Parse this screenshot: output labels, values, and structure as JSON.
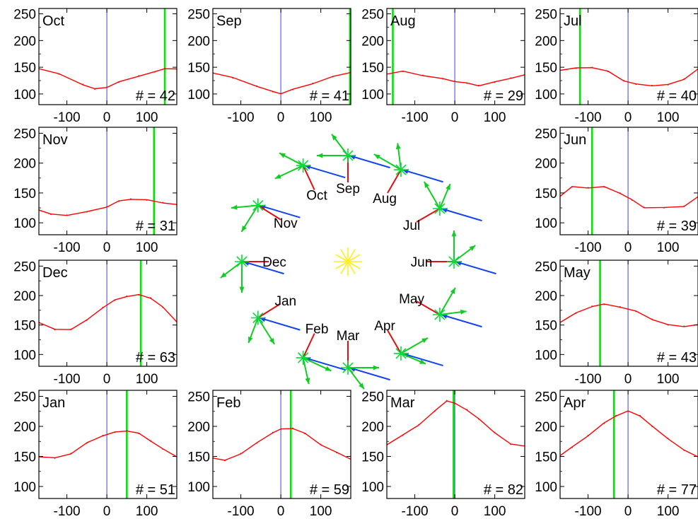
{
  "y_ticks": [
    "250",
    "200",
    "150",
    "100"
  ],
  "x_ticks": [
    "-100",
    "0",
    "100"
  ],
  "count_prefix": "# = ",
  "colors": {
    "curve": "#ff0000",
    "marker_line": "#00e600",
    "zero_line": "#6060e0",
    "frame": "#000000",
    "star_main": "#00dd33",
    "star_diag": "#33dd33",
    "arrow_blue": "#1144ee",
    "arrow_green": "#11cc22",
    "orbit_red": "#dd1111",
    "sun": "#ffee22"
  },
  "chart_data": [
    {
      "type": "line",
      "title": "Oct",
      "count": "42",
      "marker_x": 145,
      "xlim": [
        -170,
        175
      ],
      "ylim": [
        80,
        260
      ],
      "series": [
        {
          "x": [
            -170,
            -120,
            -60,
            -30,
            0,
            30,
            80,
            120,
            145,
            175
          ],
          "y": [
            148,
            137,
            118,
            109,
            113,
            122,
            134,
            141,
            148,
            146
          ]
        }
      ]
    },
    {
      "type": "line",
      "title": "Sep",
      "count": "41",
      "marker_x": 173,
      "xlim": [
        -170,
        175
      ],
      "ylim": [
        80,
        260
      ],
      "series": [
        {
          "x": [
            -170,
            -120,
            -60,
            -20,
            0,
            30,
            80,
            130,
            175
          ],
          "y": [
            140,
            130,
            115,
            104,
            101,
            108,
            120,
            132,
            141
          ]
        }
      ]
    },
    {
      "type": "line",
      "title": "Aug",
      "count": "29",
      "marker_x": -155,
      "xlim": [
        -170,
        175
      ],
      "ylim": [
        80,
        260
      ],
      "series": [
        {
          "x": [
            -170,
            -130,
            -80,
            -30,
            0,
            30,
            60,
            100,
            140,
            175
          ],
          "y": [
            138,
            142,
            135,
            128,
            124,
            120,
            116,
            122,
            130,
            135
          ]
        }
      ]
    },
    {
      "type": "line",
      "title": "Jul",
      "count": "40",
      "marker_x": -120,
      "xlim": [
        -170,
        175
      ],
      "ylim": [
        80,
        260
      ],
      "series": [
        {
          "x": [
            -170,
            -130,
            -90,
            -50,
            -10,
            20,
            60,
            100,
            140,
            175
          ],
          "y": [
            145,
            148,
            150,
            142,
            125,
            118,
            116,
            117,
            128,
            146
          ]
        }
      ]
    },
    {
      "type": "line",
      "title": "Nov",
      "count": "31",
      "marker_x": 118,
      "xlim": [
        -170,
        175
      ],
      "ylim": [
        80,
        260
      ],
      "series": [
        {
          "x": [
            -170,
            -140,
            -100,
            -50,
            0,
            30,
            60,
            100,
            140,
            175
          ],
          "y": [
            122,
            114,
            113,
            118,
            127,
            136,
            140,
            138,
            134,
            130
          ]
        }
      ]
    },
    {
      "type": "line",
      "title": "Jun",
      "count": "39",
      "marker_x": -90,
      "xlim": [
        -170,
        175
      ],
      "ylim": [
        80,
        260
      ],
      "series": [
        {
          "x": [
            -170,
            -140,
            -100,
            -60,
            -20,
            10,
            40,
            90,
            140,
            175
          ],
          "y": [
            145,
            160,
            159,
            160,
            150,
            138,
            126,
            125,
            128,
            143
          ]
        }
      ]
    },
    {
      "type": "line",
      "title": "Dec",
      "count": "63",
      "marker_x": 85,
      "xlim": [
        -170,
        175
      ],
      "ylim": [
        80,
        260
      ],
      "series": [
        {
          "x": [
            -170,
            -130,
            -90,
            -50,
            -10,
            20,
            50,
            80,
            110,
            140,
            175
          ],
          "y": [
            155,
            142,
            143,
            158,
            180,
            192,
            199,
            201,
            196,
            180,
            156
          ]
        }
      ]
    },
    {
      "type": "line",
      "title": "May",
      "count": "43",
      "marker_x": -70,
      "xlim": [
        -170,
        175
      ],
      "ylim": [
        80,
        260
      ],
      "series": [
        {
          "x": [
            -170,
            -130,
            -90,
            -60,
            -20,
            20,
            60,
            100,
            140,
            175
          ],
          "y": [
            155,
            170,
            182,
            185,
            181,
            173,
            160,
            150,
            148,
            150
          ]
        }
      ]
    },
    {
      "type": "line",
      "title": "Jan",
      "count": "51",
      "marker_x": 50,
      "xlim": [
        -170,
        175
      ],
      "ylim": [
        80,
        260
      ],
      "series": [
        {
          "x": [
            -170,
            -130,
            -90,
            -50,
            -10,
            20,
            50,
            80,
            110,
            140,
            175
          ],
          "y": [
            150,
            147,
            155,
            172,
            185,
            190,
            193,
            188,
            176,
            162,
            150
          ]
        }
      ]
    },
    {
      "type": "line",
      "title": "Feb",
      "count": "59",
      "marker_x": 25,
      "xlim": [
        -170,
        175
      ],
      "ylim": [
        80,
        260
      ],
      "series": [
        {
          "x": [
            -170,
            -140,
            -100,
            -60,
            -20,
            0,
            30,
            60,
            100,
            140,
            175
          ],
          "y": [
            148,
            143,
            155,
            172,
            190,
            195,
            197,
            188,
            170,
            156,
            146
          ]
        }
      ]
    },
    {
      "type": "line",
      "title": "Mar",
      "count": "82",
      "marker_x": -3,
      "xlim": [
        -170,
        175
      ],
      "ylim": [
        80,
        260
      ],
      "series": [
        {
          "x": [
            -170,
            -130,
            -90,
            -50,
            -20,
            0,
            30,
            60,
            100,
            140,
            175
          ],
          "y": [
            170,
            185,
            203,
            225,
            243,
            238,
            228,
            212,
            190,
            170,
            168
          ]
        }
      ]
    },
    {
      "type": "line",
      "title": "Apr",
      "count": "77",
      "marker_x": -35,
      "xlim": [
        -170,
        175
      ],
      "ylim": [
        80,
        260
      ],
      "series": [
        {
          "x": [
            -170,
            -140,
            -100,
            -60,
            -30,
            0,
            30,
            60,
            100,
            140,
            175
          ],
          "y": [
            152,
            165,
            185,
            205,
            218,
            225,
            218,
            200,
            180,
            160,
            150
          ]
        }
      ]
    }
  ],
  "orbit": {
    "sun": "sun",
    "months": [
      {
        "label": "Oct",
        "angle": 115
      },
      {
        "label": "Sep",
        "angle": 90
      },
      {
        "label": "Aug",
        "angle": 60
      },
      {
        "label": "Jul",
        "angle": 30
      },
      {
        "label": "Jun",
        "angle": 0
      },
      {
        "label": "May",
        "angle": -30
      },
      {
        "label": "Apr",
        "angle": -60
      },
      {
        "label": "Mar",
        "angle": -90
      },
      {
        "label": "Feb",
        "angle": -115
      },
      {
        "label": "Jan",
        "angle": -148
      },
      {
        "label": "Dec",
        "angle": 180
      },
      {
        "label": "Nov",
        "angle": 148
      }
    ]
  }
}
